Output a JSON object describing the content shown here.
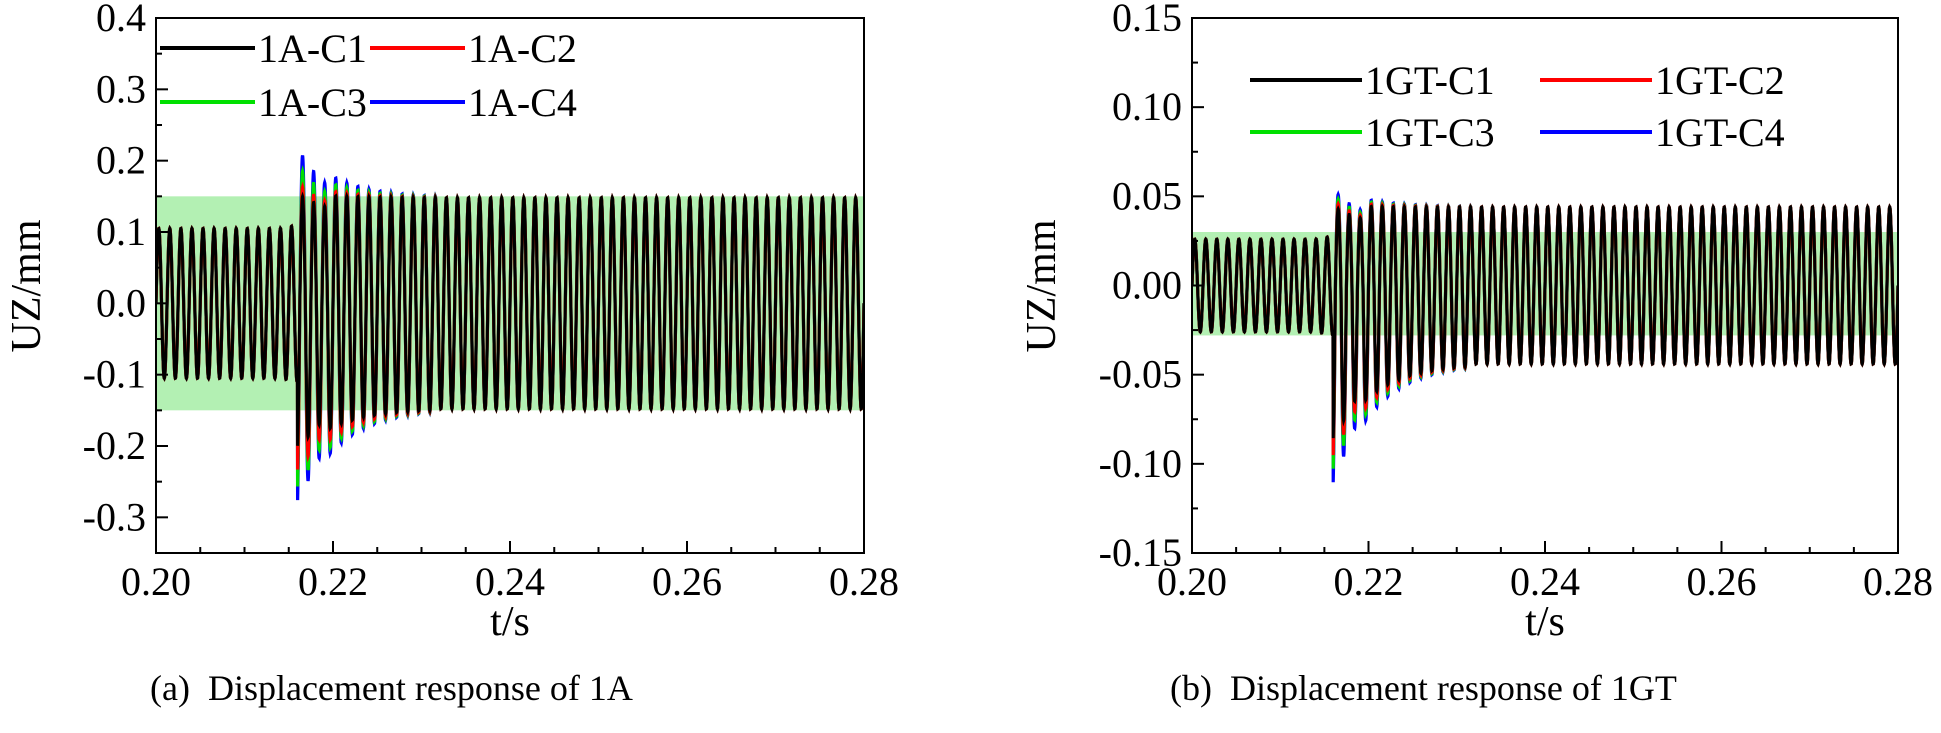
{
  "chart_data": [
    {
      "type": "line",
      "panel_id": "a",
      "caption": "(a)  Displacement response of 1A",
      "xlabel": "t/s",
      "ylabel": "UZ/mm",
      "xlim": [
        0.2,
        0.28
      ],
      "ylim": [
        -0.35,
        0.4
      ],
      "x_ticks": [
        0.2,
        0.22,
        0.24,
        0.26,
        0.28
      ],
      "x_tick_labels": [
        "0.20",
        "0.22",
        "0.24",
        "0.26",
        "0.28"
      ],
      "y_ticks": [
        0.4,
        0.3,
        0.2,
        0.1,
        0.0,
        -0.1,
        -0.2,
        -0.3
      ],
      "y_tick_labels": [
        "0.4",
        "0.3",
        "0.2",
        "0.1",
        "0.0",
        "-0.1",
        "-0.2",
        "-0.3"
      ],
      "band": {
        "y0": -0.15,
        "y1": 0.15,
        "color": "#b3f0b3"
      },
      "legend": [
        {
          "label": "1A-C1",
          "color": "#000000"
        },
        {
          "label": "1A-C2",
          "color": "#ff0000"
        },
        {
          "label": "1A-C3",
          "color": "#00e000"
        },
        {
          "label": "1A-C4",
          "color": "#0000ff"
        }
      ],
      "signal": {
        "period": 0.00125,
        "t_start": 0.2,
        "t_end": 0.28,
        "amp_before": 0.105,
        "amp_ramp_end": 0.118,
        "amp_after": 0.148,
        "t_ramp_start": 0.214,
        "t_impact": 0.2195,
        "t_settle": 0.232
      },
      "peaks": {
        "max_by_series": [
          0.155,
          0.17,
          0.195,
          0.22
        ],
        "min_by_series": [
          -0.21,
          -0.245,
          -0.27,
          -0.29
        ]
      }
    },
    {
      "type": "line",
      "panel_id": "b",
      "caption": "(b)  Displacement response of 1GT",
      "xlabel": "t/s",
      "ylabel": "UZ/mm",
      "xlim": [
        0.2,
        0.28
      ],
      "ylim": [
        -0.15,
        0.15
      ],
      "x_ticks": [
        0.2,
        0.22,
        0.24,
        0.26,
        0.28
      ],
      "x_tick_labels": [
        "0.20",
        "0.22",
        "0.24",
        "0.26",
        "0.28"
      ],
      "y_ticks": [
        0.15,
        0.1,
        0.05,
        0.0,
        -0.05,
        -0.1,
        -0.15
      ],
      "y_tick_labels": [
        "0.15",
        "0.10",
        "0.05",
        "0.00",
        "-0.05",
        "-0.10",
        "-0.15"
      ],
      "band": {
        "y0": -0.028,
        "y1": 0.03,
        "color": "#b3f0b3"
      },
      "legend": [
        {
          "label": "1GT-C1",
          "color": "#000000"
        },
        {
          "label": "1GT-C2",
          "color": "#ff0000"
        },
        {
          "label": "1GT-C3",
          "color": "#00e000"
        },
        {
          "label": "1GT-C4",
          "color": "#0000ff"
        }
      ],
      "signal": {
        "period": 0.00125,
        "t_start": 0.2,
        "t_end": 0.28,
        "amp_before": 0.026,
        "amp_ramp_end": 0.031,
        "amp_after": 0.044,
        "t_ramp_start": 0.214,
        "t_impact": 0.2195,
        "t_settle": 0.232
      },
      "peaks": {
        "max_by_series": [
          0.045,
          0.048,
          0.051,
          0.054
        ],
        "min_by_series": [
          -0.09,
          -0.1,
          -0.108,
          -0.116
        ]
      }
    }
  ]
}
